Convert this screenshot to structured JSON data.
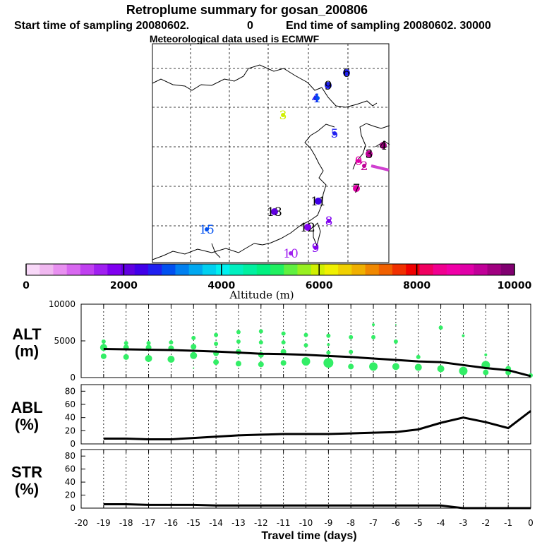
{
  "header": {
    "title": "Retroplume summary for gosan_200806",
    "start_label": "Start time of sampling 20080602.",
    "start_value": "0",
    "end_label": "End time of sampling 20080602. 30000",
    "met_line": "Meteorological data used is ECMWF"
  },
  "map": {
    "labels": [
      {
        "text": "6",
        "day": -6,
        "alt": 2600,
        "ring": true
      },
      {
        "text": "9",
        "day": -9,
        "alt": 2500,
        "ring": true
      },
      {
        "text": "4",
        "day": -4,
        "alt": 2600,
        "ring": false
      },
      {
        "text": "1",
        "day": -1,
        "alt": 2800,
        "ring": false
      },
      {
        "text": "3",
        "day": -3,
        "alt": 6100,
        "ring": false
      },
      {
        "text": "5",
        "day": -5,
        "alt": 2700,
        "ring": false
      },
      {
        "text": "4",
        "day": -4,
        "alt": 9500,
        "ring": true
      },
      {
        "text": "3",
        "day": -3,
        "alt": 9200,
        "ring": true
      },
      {
        "text": "0",
        "day": 0,
        "alt": 9000,
        "ring": false
      },
      {
        "text": "2",
        "day": -2,
        "alt": 9300,
        "ring": false
      },
      {
        "text": "7",
        "day": -7,
        "alt": 8900,
        "ring": true
      },
      {
        "text": "11",
        "day": -11,
        "alt": 2300,
        "ring": true
      },
      {
        "text": "13",
        "day": -13,
        "alt": 2200,
        "ring": true
      },
      {
        "text": "8",
        "day": -8,
        "alt": 1800,
        "ring": false
      },
      {
        "text": "12",
        "day": -12,
        "alt": 1700,
        "ring": true
      },
      {
        "text": "15",
        "day": -15,
        "alt": 2800,
        "ring": false
      },
      {
        "text": "10",
        "day": -10,
        "alt": 1600,
        "ring": false
      },
      {
        "text": "9",
        "day": -9,
        "alt": 1800,
        "ring": false
      }
    ]
  },
  "colorbar": {
    "ticks": [
      "0",
      "2000",
      "4000",
      "6000",
      "8000",
      "10000"
    ],
    "label": "Altitude (m)",
    "colors": [
      "#f8d8f8",
      "#f0b8f0",
      "#e890f0",
      "#d868f0",
      "#c040f0",
      "#a020f0",
      "#8000f0",
      "#6000e0",
      "#4000e8",
      "#2020f0",
      "#0050f0",
      "#0080f0",
      "#00a8f0",
      "#00d0f0",
      "#00f0f0",
      "#00f0c0",
      "#00f0a0",
      "#00f080",
      "#20f060",
      "#60f040",
      "#98f020",
      "#d0f000",
      "#f0f000",
      "#f0d000",
      "#f0b000",
      "#f08800",
      "#f06000",
      "#f03000",
      "#f00000",
      "#f00060",
      "#f00090",
      "#f000a8",
      "#e000a8",
      "#c00098",
      "#a00080",
      "#800070"
    ]
  },
  "chart_data": [
    {
      "type": "scatter",
      "panel": "ALT",
      "title": "ALT (m)",
      "ylabel_line1": "ALT",
      "ylabel_line2": "(m)",
      "ylim": [
        0,
        10000
      ],
      "yticks": [
        "0",
        "5000",
        "10000"
      ],
      "xlim": [
        -20,
        0
      ],
      "line": {
        "x": [
          -19,
          -18,
          -17,
          -16,
          -15,
          -14,
          -13,
          -12,
          -11,
          -10,
          -9,
          -8,
          -7,
          -6,
          -5,
          -4,
          -3,
          -2,
          -1,
          0
        ],
        "y": [
          3900,
          3850,
          3800,
          3750,
          3650,
          3550,
          3400,
          3250,
          3200,
          3100,
          2950,
          2800,
          2600,
          2400,
          2200,
          2100,
          1700,
          1300,
          1000,
          200
        ]
      },
      "points": [
        {
          "x": -19,
          "y": 4900,
          "s": 3
        },
        {
          "x": -19,
          "y": 4100,
          "s": 5
        },
        {
          "x": -19,
          "y": 2900,
          "s": 4
        },
        {
          "x": -18,
          "y": 4700,
          "s": 3
        },
        {
          "x": -18,
          "y": 4100,
          "s": 4
        },
        {
          "x": -18,
          "y": 2800,
          "s": 4
        },
        {
          "x": -17,
          "y": 4700,
          "s": 3
        },
        {
          "x": -17,
          "y": 4100,
          "s": 4
        },
        {
          "x": -17,
          "y": 2600,
          "s": 5
        },
        {
          "x": -16,
          "y": 4800,
          "s": 3
        },
        {
          "x": -16,
          "y": 4000,
          "s": 4
        },
        {
          "x": -16,
          "y": 2500,
          "s": 5
        },
        {
          "x": -15,
          "y": 5400,
          "s": 3
        },
        {
          "x": -15,
          "y": 4200,
          "s": 4
        },
        {
          "x": -15,
          "y": 3000,
          "s": 5
        },
        {
          "x": -15,
          "y": 1300,
          "s": 1
        },
        {
          "x": -14,
          "y": 5800,
          "s": 3
        },
        {
          "x": -14,
          "y": 4600,
          "s": 3
        },
        {
          "x": -14,
          "y": 3300,
          "s": 4
        },
        {
          "x": -14,
          "y": 2100,
          "s": 4
        },
        {
          "x": -13,
          "y": 6200,
          "s": 3
        },
        {
          "x": -13,
          "y": 4900,
          "s": 3
        },
        {
          "x": -13,
          "y": 3500,
          "s": 4
        },
        {
          "x": -13,
          "y": 1900,
          "s": 4
        },
        {
          "x": -12,
          "y": 6300,
          "s": 3
        },
        {
          "x": -12,
          "y": 4800,
          "s": 3
        },
        {
          "x": -12,
          "y": 3100,
          "s": 4
        },
        {
          "x": -12,
          "y": 1800,
          "s": 4
        },
        {
          "x": -11,
          "y": 6000,
          "s": 3
        },
        {
          "x": -11,
          "y": 4800,
          "s": 3
        },
        {
          "x": -11,
          "y": 3500,
          "s": 4
        },
        {
          "x": -11,
          "y": 2000,
          "s": 4
        },
        {
          "x": -10,
          "y": 5800,
          "s": 3
        },
        {
          "x": -10,
          "y": 4400,
          "s": 3
        },
        {
          "x": -10,
          "y": 2200,
          "s": 6
        },
        {
          "x": -9,
          "y": 5700,
          "s": 3
        },
        {
          "x": -9,
          "y": 4500,
          "s": 2
        },
        {
          "x": -9,
          "y": 3400,
          "s": 3
        },
        {
          "x": -9,
          "y": 2000,
          "s": 7
        },
        {
          "x": -8,
          "y": 5500,
          "s": 3
        },
        {
          "x": -8,
          "y": 3500,
          "s": 3
        },
        {
          "x": -8,
          "y": 1500,
          "s": 4
        },
        {
          "x": -7,
          "y": 7200,
          "s": 2
        },
        {
          "x": -7,
          "y": 5500,
          "s": 3
        },
        {
          "x": -7,
          "y": 1500,
          "s": 6
        },
        {
          "x": -6,
          "y": 7200,
          "s": 1
        },
        {
          "x": -6,
          "y": 4900,
          "s": 3
        },
        {
          "x": -6,
          "y": 1500,
          "s": 5
        },
        {
          "x": -5,
          "y": 2800,
          "s": 3
        },
        {
          "x": -5,
          "y": 1400,
          "s": 5
        },
        {
          "x": -4,
          "y": 6800,
          "s": 3
        },
        {
          "x": -4,
          "y": 1200,
          "s": 5
        },
        {
          "x": -3,
          "y": 5700,
          "s": 2
        },
        {
          "x": -3,
          "y": 900,
          "s": 6
        },
        {
          "x": -2,
          "y": 3100,
          "s": 2
        },
        {
          "x": -2,
          "y": 1700,
          "s": 6
        },
        {
          "x": -2,
          "y": 700,
          "s": 4
        },
        {
          "x": -1,
          "y": 1200,
          "s": 4
        },
        {
          "x": -1,
          "y": 700,
          "s": 4
        },
        {
          "x": 0,
          "y": 300,
          "s": 3
        }
      ]
    },
    {
      "type": "line",
      "panel": "ABL",
      "title": "ABL (%)",
      "ylabel_line1": "ABL",
      "ylabel_line2": "(%)",
      "ylim": [
        0,
        90
      ],
      "yticks": [
        "0",
        "20",
        "40",
        "60",
        "80"
      ],
      "xlim": [
        -20,
        0
      ],
      "x": [
        -19,
        -18,
        -17,
        -16,
        -15,
        -14,
        -13,
        -12,
        -11,
        -10,
        -9,
        -8,
        -7,
        -6,
        -5,
        -4,
        -3,
        -2,
        -1,
        0
      ],
      "y": [
        8,
        8,
        7,
        7,
        9,
        11,
        13,
        14,
        15,
        15,
        15,
        16,
        17,
        18,
        22,
        32,
        40,
        33,
        24,
        50
      ]
    },
    {
      "type": "line",
      "panel": "STR",
      "title": "STR (%)",
      "ylabel_line1": "STR",
      "ylabel_line2": "(%)",
      "ylim": [
        0,
        90
      ],
      "yticks": [
        "0",
        "20",
        "40",
        "60",
        "80"
      ],
      "xlim": [
        -20,
        0
      ],
      "xticks": [
        "-20",
        "-19",
        "-18",
        "-17",
        "-16",
        "-15",
        "-14",
        "-13",
        "-12",
        "-11",
        "-10",
        "-9",
        "-8",
        "-7",
        "-6",
        "-5",
        "-4",
        "-3",
        "-2",
        "-1",
        "0"
      ],
      "xlabel": "Travel time (days)",
      "x": [
        -19,
        -18,
        -17,
        -16,
        -15,
        -14,
        -13,
        -12,
        -11,
        -10,
        -9,
        -8,
        -7,
        -6,
        -5,
        -4,
        -3,
        -2,
        -1,
        0
      ],
      "y": [
        6,
        6,
        5,
        5,
        5,
        4,
        4,
        4,
        4,
        4,
        4,
        4,
        4,
        4,
        4,
        4,
        0,
        0,
        0,
        0
      ]
    }
  ]
}
